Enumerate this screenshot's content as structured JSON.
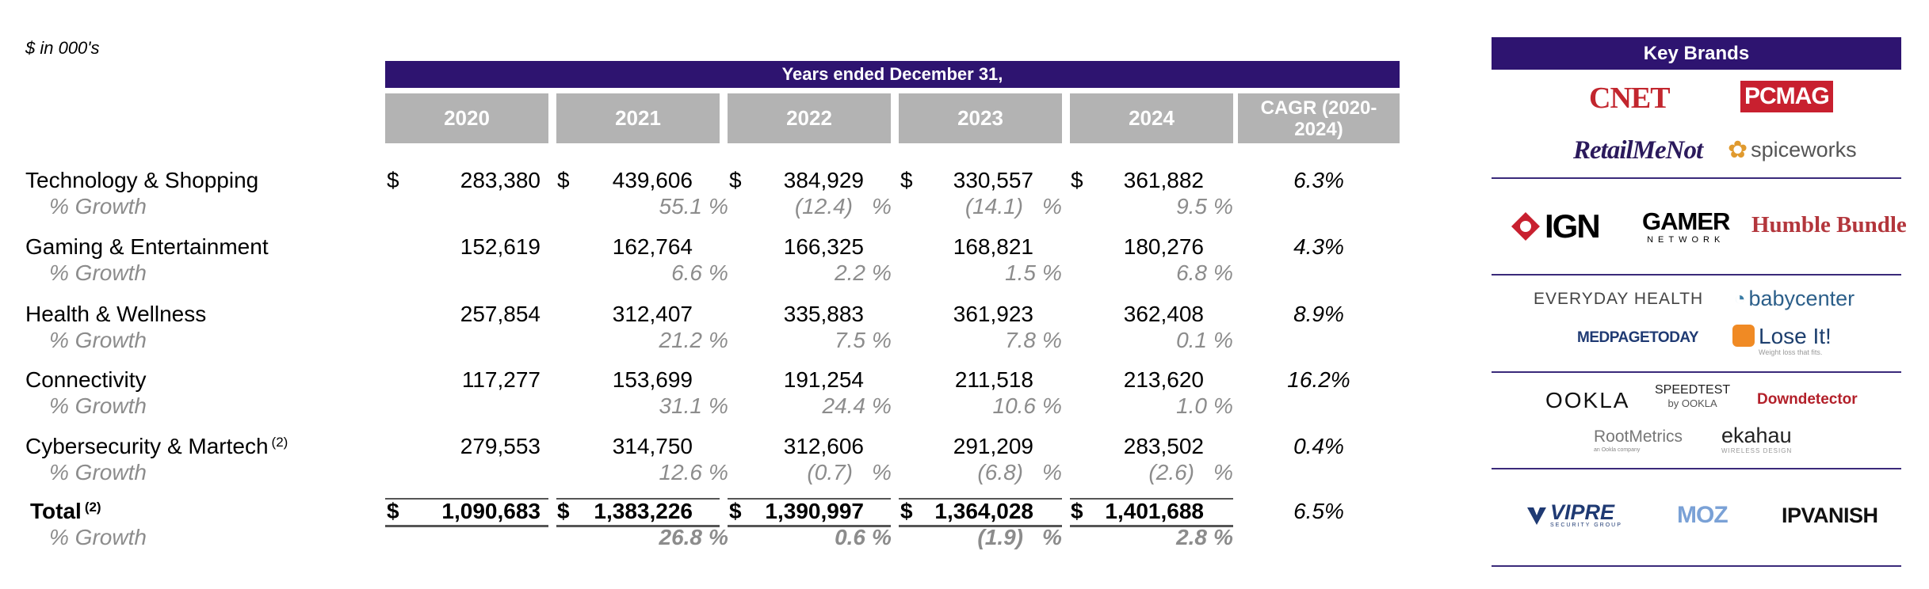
{
  "units": "$ in 000's",
  "header": "Years ended December 31,",
  "columns": [
    "2020",
    "2021",
    "2022",
    "2023",
    "2024"
  ],
  "cagr_header": "CAGR (2020-2024)",
  "currency_symbol": "$",
  "percent_symbol": "%",
  "growth_label": "% Growth",
  "rows": [
    {
      "label": "Technology & Shopping",
      "note": "",
      "values": [
        "283,380",
        "439,606",
        "384,929",
        "330,557",
        "361,882"
      ],
      "growth": [
        "",
        "55.1",
        "(12.4)",
        "(14.1)",
        "9.5"
      ],
      "cagr": "6.3%"
    },
    {
      "label": "Gaming & Entertainment",
      "note": "",
      "values": [
        "152,619",
        "162,764",
        "166,325",
        "168,821",
        "180,276"
      ],
      "growth": [
        "",
        "6.6",
        "2.2",
        "1.5",
        "6.8"
      ],
      "cagr": "4.3%"
    },
    {
      "label": "Health & Wellness",
      "note": "",
      "values": [
        "257,854",
        "312,407",
        "335,883",
        "361,923",
        "362,408"
      ],
      "growth": [
        "",
        "21.2",
        "7.5",
        "7.8",
        "0.1"
      ],
      "cagr": "8.9%"
    },
    {
      "label": "Connectivity",
      "note": "",
      "values": [
        "117,277",
        "153,699",
        "191,254",
        "211,518",
        "213,620"
      ],
      "growth": [
        "",
        "31.1",
        "24.4",
        "10.6",
        "1.0"
      ],
      "cagr": "16.2%"
    },
    {
      "label": "Cybersecurity & Martech",
      "note": "(2)",
      "values": [
        "279,553",
        "314,750",
        "312,606",
        "291,209",
        "283,502"
      ],
      "growth": [
        "",
        "12.6",
        "(0.7)",
        "(6.8)",
        "(2.6)"
      ],
      "cagr": "0.4%"
    }
  ],
  "total": {
    "label": "Total",
    "note": "(2)",
    "values": [
      "1,090,683",
      "1,383,226",
      "1,390,997",
      "1,364,028",
      "1,401,688"
    ],
    "growth": [
      "",
      "26.8",
      "0.6",
      "(1.9)",
      "2.8"
    ],
    "cagr": "6.5%"
  },
  "brands": {
    "title": "Key Brands",
    "groups": [
      [
        "CNET",
        "PCMAG",
        "RetailMeNot",
        "spiceworks"
      ],
      [
        "IGN",
        "GAMER",
        "NETWORK",
        "Humble Bundle"
      ],
      [
        "EVERYDAY HEALTH",
        "babycenter",
        "MEDPAGETODAY",
        "Lose It!",
        "Weight loss that fits."
      ],
      [
        "OOKLA",
        "SPEEDTEST",
        "by OOKLA",
        "Downdetector",
        "RootMetrics",
        "an Ookla company",
        "ekahau",
        "WIRELESS DESIGN"
      ],
      [
        "VIPRE",
        "SECURITY GROUP",
        "MOZ",
        "IPVANISH"
      ]
    ]
  },
  "colors": {
    "brand_purple": "#2e1470",
    "header_gray": "#b3b3b3",
    "growth_gray": "#8c8c8c",
    "cnet_red": "#c2262e",
    "pcmag_red": "#c8202f"
  }
}
